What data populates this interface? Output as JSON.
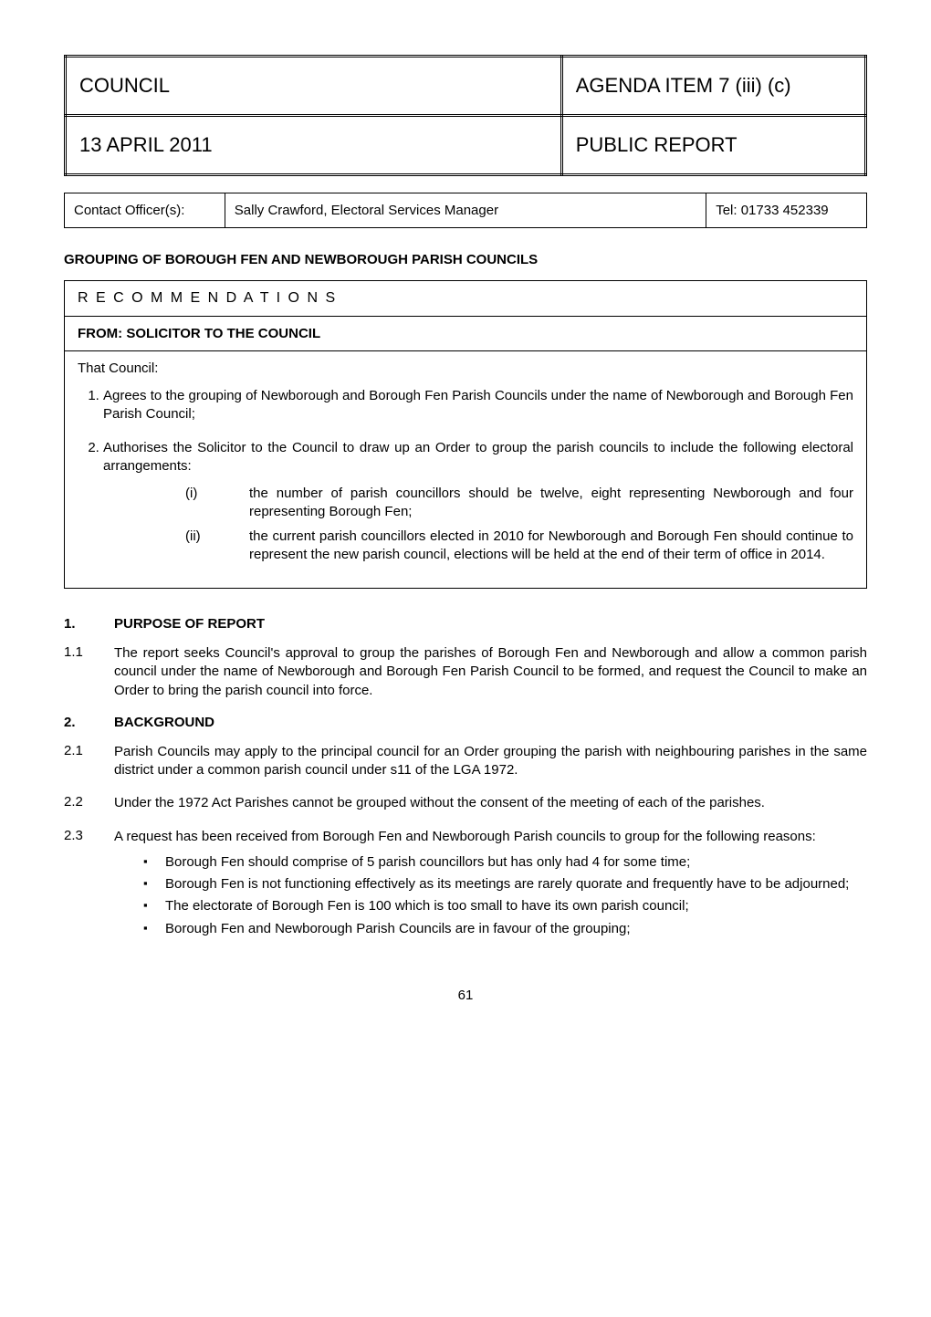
{
  "header": {
    "council": "COUNCIL",
    "agenda": "AGENDA ITEM 7 (iii) (c)",
    "date": "13 APRIL 2011",
    "report_type": "PUBLIC REPORT"
  },
  "contact": {
    "label": "Contact Officer(s):",
    "name": "Sally Crawford, Electoral Services Manager",
    "tel": "Tel: 01733 452339"
  },
  "title": "GROUPING OF BOROUGH FEN AND NEWBOROUGH PARISH COUNCILS",
  "recommendations": {
    "heading": "R E C O M M E N D A T I O N S",
    "from": "FROM:  SOLICITOR TO THE COUNCIL",
    "intro": "That Council:",
    "items": [
      "Agrees to the grouping of Newborough and Borough Fen Parish Councils under the name of Newborough and Borough Fen Parish Council;",
      "Authorises the Solicitor to the Council to draw up an Order to group the parish councils to include the following electoral arrangements:"
    ],
    "sub_items": [
      {
        "num": "(i)",
        "text": "the number of parish councillors should be twelve, eight representing Newborough and four representing Borough Fen;"
      },
      {
        "num": "(ii)",
        "text": "the current parish councillors elected in 2010 for Newborough and Borough Fen should continue to represent the new parish council, elections will be held at the end of their term of office in 2014."
      }
    ]
  },
  "sections": [
    {
      "num": "1.",
      "heading": "PURPOSE OF REPORT",
      "paras": [
        {
          "pnum": "1.1",
          "text": "The report seeks Council's approval to group the parishes of Borough Fen and Newborough and allow a common parish council under the name of Newborough and Borough Fen Parish Council to be formed, and request the Council to make an Order to bring the parish council into force."
        }
      ]
    },
    {
      "num": "2.",
      "heading": "BACKGROUND",
      "paras": [
        {
          "pnum": "2.1",
          "text": "Parish Councils may apply to the principal council for an Order grouping the parish with neighbouring parishes in the same district under a common parish council under s11 of the LGA 1972."
        },
        {
          "pnum": "2.2",
          "text": "Under the 1972 Act Parishes cannot be grouped without the consent of the meeting of each of the parishes."
        },
        {
          "pnum": "2.3",
          "text": "A request has been received from Borough Fen and Newborough Parish councils to group for the following reasons:",
          "bullets": [
            "Borough Fen should comprise of 5 parish councillors but has only had 4 for some time;",
            "Borough Fen is not functioning effectively as its meetings are rarely quorate and frequently have to be adjourned;",
            "The electorate of Borough Fen is 100 which is too small to have its own parish council;",
            "Borough Fen and Newborough Parish Councils are in favour of the grouping;"
          ]
        }
      ]
    }
  ],
  "page_number": "61",
  "styling": {
    "body_width": 1020,
    "body_padding": 70,
    "background_color": "#ffffff",
    "text_color": "#000000",
    "font_family": "Arial, sans-serif",
    "base_font_size": 15,
    "header_font_size": 22,
    "border_color": "#000000",
    "header_border_style": "double",
    "header_border_width": 3,
    "contact_border_width": 1.5
  }
}
